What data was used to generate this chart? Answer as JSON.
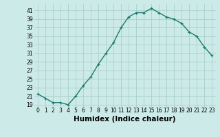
{
  "xlabel": "Humidex (Indice chaleur)",
  "x": [
    0,
    1,
    2,
    3,
    4,
    5,
    6,
    7,
    8,
    9,
    10,
    11,
    12,
    13,
    14,
    15,
    16,
    17,
    18,
    19,
    20,
    21,
    22,
    23
  ],
  "y": [
    21.5,
    20.5,
    19.5,
    19.5,
    19.0,
    21.0,
    23.5,
    25.5,
    28.5,
    31.0,
    33.5,
    37.0,
    39.5,
    40.5,
    40.5,
    41.5,
    40.5,
    39.5,
    39.0,
    38.0,
    36.0,
    35.0,
    32.5,
    30.5
  ],
  "ylim": [
    18.5,
    42.5
  ],
  "yticks": [
    19,
    21,
    23,
    25,
    27,
    29,
    31,
    33,
    35,
    37,
    39,
    41
  ],
  "xticks": [
    0,
    1,
    2,
    3,
    4,
    5,
    6,
    7,
    8,
    9,
    10,
    11,
    12,
    13,
    14,
    15,
    16,
    17,
    18,
    19,
    20,
    21,
    22,
    23
  ],
  "line_color": "#1a7a6e",
  "marker": "+",
  "marker_size": 3.5,
  "bg_color": "#cceae7",
  "grid_color": "#aacfcc",
  "tick_fontsize": 5.5,
  "xlabel_fontsize": 7.5,
  "linewidth": 1.0
}
